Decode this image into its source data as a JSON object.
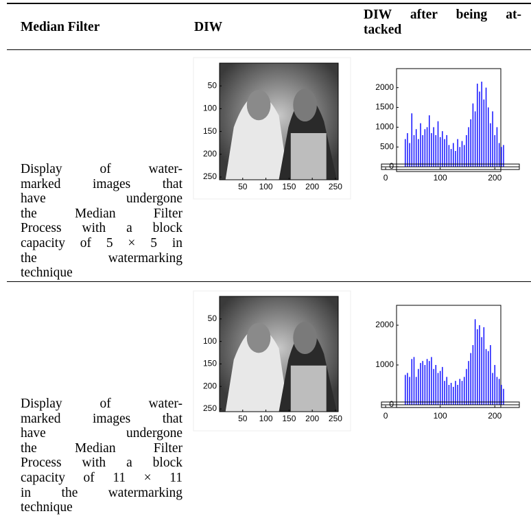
{
  "table": {
    "headers": [
      [
        "Median Filter"
      ],
      [
        "DIW"
      ],
      [
        "DIW after being at-",
        "tacked"
      ]
    ],
    "rows": [
      {
        "description": [
          "Display of water-",
          "marked images that",
          "have undergone",
          "the Median Filter",
          "Process with a block",
          "capacity of 5 × 5 in",
          "the watermarking",
          "technique"
        ],
        "image": {
          "xlim": [
            0,
            256
          ],
          "ylim": [
            0,
            256
          ],
          "xticks": [
            50,
            100,
            150,
            200,
            250
          ],
          "yticks": [
            50,
            100,
            150,
            200,
            250
          ]
        },
        "histogram": {
          "type": "bar",
          "color": "#0000ff",
          "xlim": [
            20,
            211
          ],
          "ylim": [
            -120,
            2480
          ],
          "xticks": [
            0,
            100,
            200
          ],
          "yticks": [
            0,
            500,
            1000,
            1500,
            2000
          ],
          "x": [
            36,
            40,
            44,
            48,
            52,
            56,
            60,
            64,
            68,
            72,
            76,
            80,
            84,
            88,
            92,
            96,
            100,
            104,
            108,
            112,
            116,
            120,
            124,
            128,
            132,
            136,
            140,
            144,
            148,
            152,
            156,
            160,
            164,
            168,
            172,
            176,
            180,
            184,
            188,
            192,
            196,
            200,
            204,
            208,
            212,
            216
          ],
          "values": [
            700,
            850,
            600,
            1350,
            800,
            950,
            700,
            1100,
            800,
            950,
            1000,
            1300,
            850,
            1000,
            800,
            1150,
            750,
            900,
            700,
            800,
            550,
            450,
            600,
            400,
            700,
            500,
            650,
            550,
            800,
            1000,
            1200,
            1600,
            1400,
            2100,
            1900,
            2150,
            1700,
            2000,
            1500,
            1100,
            1400,
            800,
            1000,
            600,
            500,
            550
          ]
        }
      },
      {
        "description": [
          "Display of water-",
          "marked images that",
          "have undergone",
          "the Median Filter",
          "Process with a block",
          "capacity of 11 × 11",
          "in the watermarking",
          "technique"
        ],
        "image": {
          "xlim": [
            0,
            256
          ],
          "ylim": [
            0,
            256
          ],
          "xticks": [
            50,
            100,
            150,
            200,
            250
          ],
          "yticks": [
            50,
            100,
            150,
            200,
            250
          ]
        },
        "histogram": {
          "type": "bar",
          "color": "#0000ff",
          "xlim": [
            20,
            211
          ],
          "ylim": [
            -70,
            2500
          ],
          "xticks": [
            0,
            100,
            200
          ],
          "yticks": [
            0,
            1000,
            2000
          ],
          "x": [
            36,
            40,
            44,
            48,
            52,
            56,
            60,
            64,
            68,
            72,
            76,
            80,
            84,
            88,
            92,
            96,
            100,
            104,
            108,
            112,
            116,
            120,
            124,
            128,
            132,
            136,
            140,
            144,
            148,
            152,
            156,
            160,
            164,
            168,
            172,
            176,
            180,
            184,
            188,
            192,
            196,
            200,
            204,
            208,
            212,
            216
          ],
          "values": [
            750,
            800,
            700,
            1150,
            1200,
            700,
            900,
            1050,
            1100,
            1000,
            1150,
            1100,
            1200,
            900,
            1000,
            800,
            850,
            950,
            600,
            700,
            500,
            550,
            450,
            600,
            500,
            650,
            600,
            700,
            900,
            1100,
            1300,
            1500,
            2150,
            1900,
            2000,
            1700,
            1950,
            1400,
            1350,
            1500,
            800,
            1000,
            700,
            650,
            500,
            400
          ]
        }
      }
    ]
  }
}
